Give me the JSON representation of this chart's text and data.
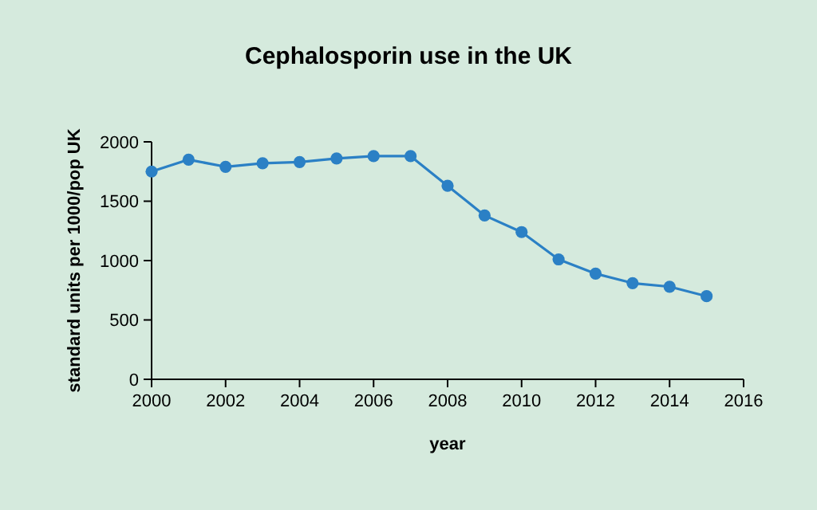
{
  "chart_data": {
    "type": "line",
    "title": "Cephalosporin use in the UK",
    "xlabel": "year",
    "ylabel": "standard units per 1000/pop UK",
    "x": [
      2000,
      2001,
      2002,
      2003,
      2004,
      2005,
      2006,
      2007,
      2008,
      2009,
      2010,
      2011,
      2012,
      2013,
      2014,
      2015
    ],
    "series": [
      {
        "color": "#2b80c5",
        "values": [
          1750,
          1850,
          1790,
          1820,
          1830,
          1860,
          1880,
          1880,
          1630,
          1380,
          1240,
          1010,
          890,
          810,
          780,
          700
        ]
      }
    ],
    "xlim": [
      2000,
      2016
    ],
    "xticks": [
      2000,
      2002,
      2004,
      2006,
      2008,
      2010,
      2012,
      2014,
      2016
    ],
    "ylim": [
      0,
      2000
    ],
    "yticks": [
      0,
      500,
      1000,
      1500,
      2000
    ],
    "grid": false,
    "marker": "circle",
    "line_style": "solid"
  }
}
